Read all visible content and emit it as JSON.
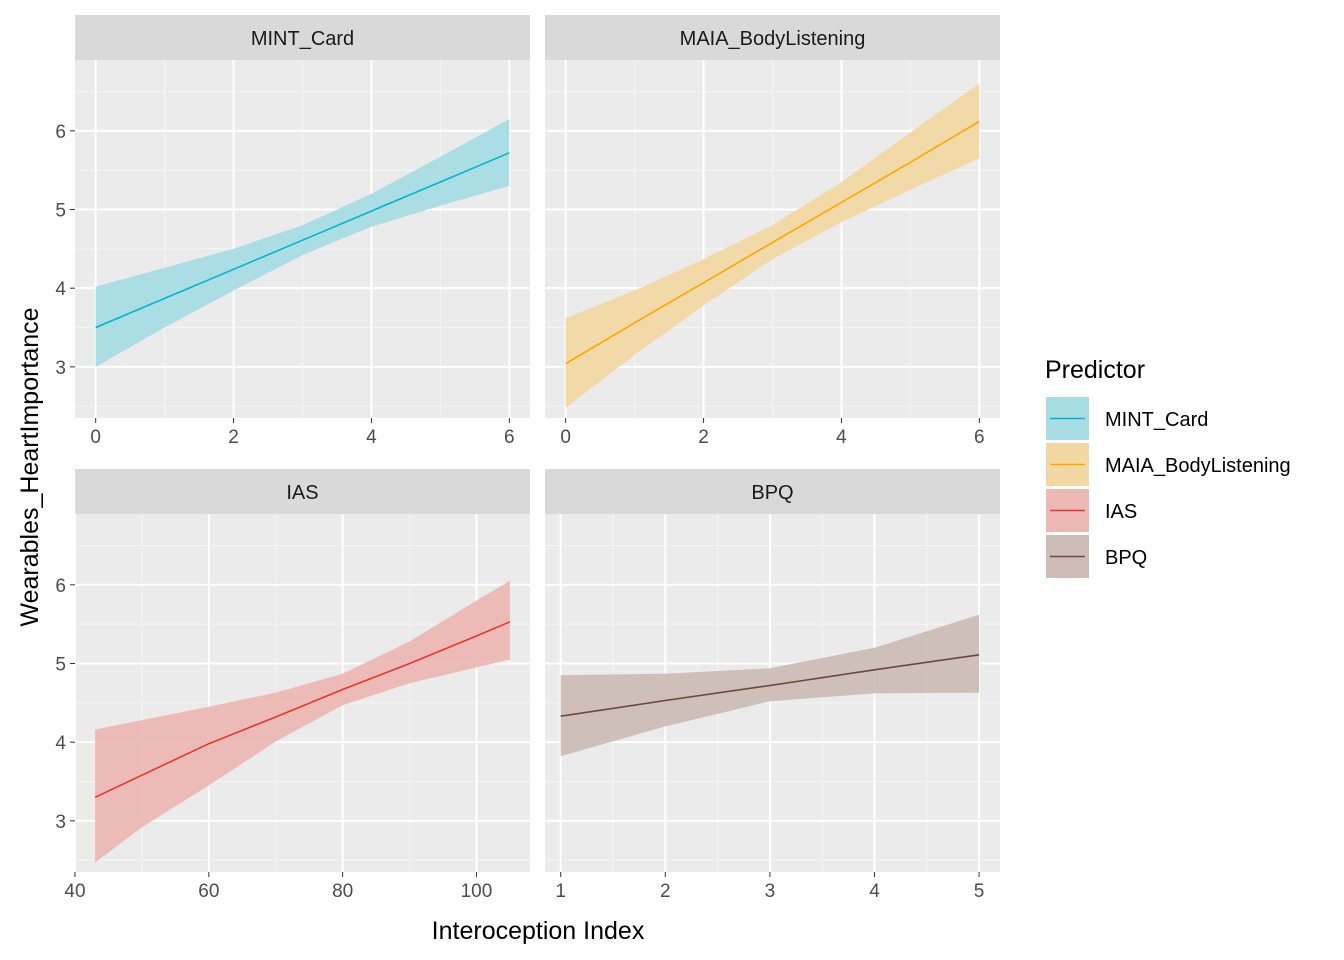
{
  "chart_data": {
    "type": "line",
    "facet_layout": "2x2",
    "xlabel": "Interoception Index",
    "ylabel": "Wearables_HeartImportance",
    "ylim": [
      2.35,
      6.9
    ],
    "y_ticks": [
      3,
      4,
      5,
      6
    ],
    "grid": true,
    "legend": {
      "title": "Predictor",
      "position": "right",
      "entries": [
        {
          "label": "MINT_Card",
          "line": "#00B4CC",
          "fill": "#A8DDE4"
        },
        {
          "label": "MAIA_BodyListening",
          "line": "#FFA500",
          "fill": "#F2D9A4"
        },
        {
          "label": "IAS",
          "line": "#E8362E",
          "fill": "#EDB8B4"
        },
        {
          "label": "BPQ",
          "line": "#6B4A3A",
          "fill": "#CDBDB6"
        }
      ]
    },
    "panels": [
      {
        "title": "MINT_Card",
        "xlim": [
          -0.3,
          6.3
        ],
        "x_ticks": [
          0,
          2,
          4,
          6
        ],
        "x": [
          0,
          1,
          2,
          3,
          4,
          5,
          6
        ],
        "fit": [
          3.5,
          3.87,
          4.24,
          4.61,
          4.98,
          5.35,
          5.72
        ],
        "lower": [
          3.0,
          3.5,
          3.97,
          4.42,
          4.78,
          5.05,
          5.3
        ],
        "upper": [
          4.02,
          4.26,
          4.5,
          4.8,
          5.2,
          5.67,
          6.15
        ],
        "line": "#00B4CC",
        "fill": "#A8DDE4"
      },
      {
        "title": "MAIA_BodyListening",
        "xlim": [
          -0.3,
          6.3
        ],
        "x_ticks": [
          0,
          2,
          4,
          6
        ],
        "x": [
          0,
          1,
          2,
          3,
          4,
          5,
          6
        ],
        "fit": [
          3.04,
          3.56,
          4.07,
          4.58,
          5.09,
          5.6,
          6.12
        ],
        "lower": [
          2.48,
          3.15,
          3.78,
          4.37,
          4.84,
          5.25,
          5.65
        ],
        "upper": [
          3.62,
          3.97,
          4.37,
          4.8,
          5.35,
          5.98,
          6.6
        ],
        "line": "#FFA500",
        "fill": "#F2D9A4"
      },
      {
        "title": "IAS",
        "xlim": [
          40,
          108
        ],
        "x_ticks": [
          40,
          60,
          80,
          100
        ],
        "x": [
          43,
          50,
          60,
          70,
          80,
          90,
          100,
          105
        ],
        "fit": [
          3.3,
          3.58,
          3.98,
          4.32,
          4.67,
          5.0,
          5.35,
          5.53
        ],
        "lower": [
          2.47,
          2.92,
          3.45,
          4.01,
          4.47,
          4.75,
          4.95,
          5.05
        ],
        "upper": [
          4.16,
          4.28,
          4.45,
          4.63,
          4.87,
          5.28,
          5.8,
          6.05
        ],
        "line": "#E8362E",
        "fill": "#EDB8B4"
      },
      {
        "title": "BPQ",
        "xlim": [
          0.85,
          5.2
        ],
        "x_ticks": [
          1,
          2,
          3,
          4,
          5
        ],
        "x": [
          1,
          2,
          3,
          4,
          5
        ],
        "fit": [
          4.33,
          4.53,
          4.72,
          4.92,
          5.11
        ],
        "lower": [
          3.82,
          4.2,
          4.52,
          4.62,
          4.63
        ],
        "upper": [
          4.85,
          4.87,
          4.94,
          5.2,
          5.62
        ],
        "line": "#6B4A3A",
        "fill": "#CDBDB6"
      }
    ]
  }
}
